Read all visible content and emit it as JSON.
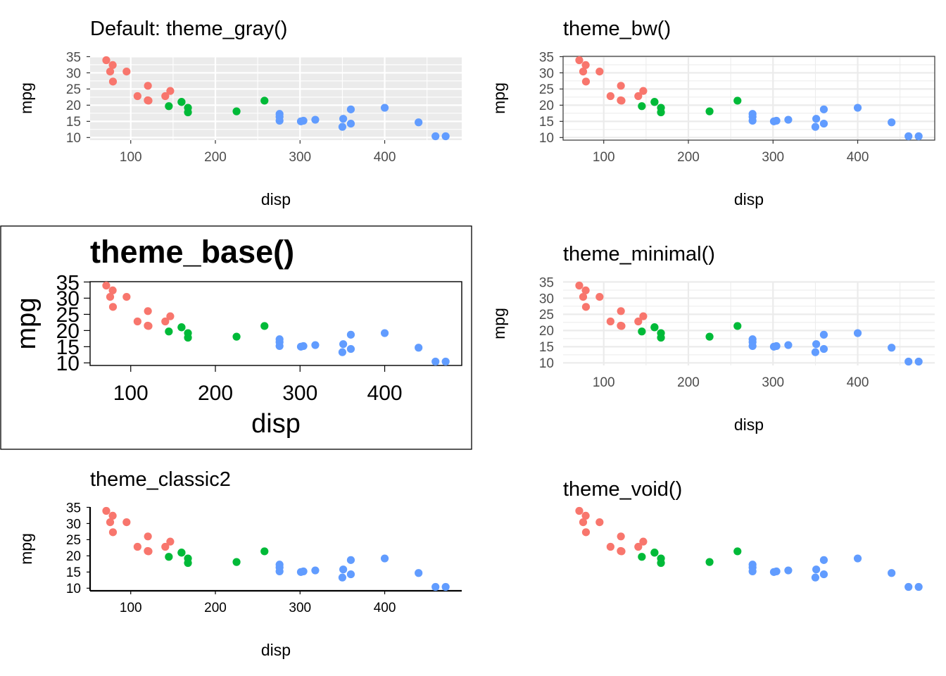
{
  "figure": {
    "colors": {
      "group_a": "#F8766D",
      "group_b": "#00BA38",
      "group_c": "#619CFF",
      "gray_panel": "#EBEBEB",
      "grid_light": "#EBEBEB",
      "axis_text": "#4D4D4D"
    },
    "points": [
      {
        "disp": 71.1,
        "mpg": 33.9,
        "group": "a"
      },
      {
        "disp": 75.7,
        "mpg": 30.4,
        "group": "a"
      },
      {
        "disp": 78.7,
        "mpg": 32.4,
        "group": "a"
      },
      {
        "disp": 79.0,
        "mpg": 27.3,
        "group": "a"
      },
      {
        "disp": 95.1,
        "mpg": 30.4,
        "group": "a"
      },
      {
        "disp": 108.0,
        "mpg": 22.8,
        "group": "a"
      },
      {
        "disp": 120.1,
        "mpg": 21.5,
        "group": "a"
      },
      {
        "disp": 120.3,
        "mpg": 26.0,
        "group": "a"
      },
      {
        "disp": 121.0,
        "mpg": 21.4,
        "group": "a"
      },
      {
        "disp": 140.8,
        "mpg": 22.8,
        "group": "a"
      },
      {
        "disp": 146.7,
        "mpg": 24.4,
        "group": "a"
      },
      {
        "disp": 145.0,
        "mpg": 19.7,
        "group": "b"
      },
      {
        "disp": 160.0,
        "mpg": 21.0,
        "group": "b"
      },
      {
        "disp": 160.0,
        "mpg": 21.0,
        "group": "b"
      },
      {
        "disp": 167.6,
        "mpg": 19.2,
        "group": "b"
      },
      {
        "disp": 167.6,
        "mpg": 17.8,
        "group": "b"
      },
      {
        "disp": 225.0,
        "mpg": 18.1,
        "group": "b"
      },
      {
        "disp": 258.0,
        "mpg": 21.4,
        "group": "b"
      },
      {
        "disp": 275.8,
        "mpg": 16.4,
        "group": "c"
      },
      {
        "disp": 275.8,
        "mpg": 17.3,
        "group": "c"
      },
      {
        "disp": 275.8,
        "mpg": 15.2,
        "group": "c"
      },
      {
        "disp": 301.0,
        "mpg": 15.0,
        "group": "c"
      },
      {
        "disp": 304.0,
        "mpg": 15.2,
        "group": "c"
      },
      {
        "disp": 318.0,
        "mpg": 15.5,
        "group": "c"
      },
      {
        "disp": 350.0,
        "mpg": 13.3,
        "group": "c"
      },
      {
        "disp": 351.0,
        "mpg": 15.8,
        "group": "c"
      },
      {
        "disp": 360.0,
        "mpg": 18.7,
        "group": "c"
      },
      {
        "disp": 360.0,
        "mpg": 14.3,
        "group": "c"
      },
      {
        "disp": 400.0,
        "mpg": 19.2,
        "group": "c"
      },
      {
        "disp": 440.0,
        "mpg": 14.7,
        "group": "c"
      },
      {
        "disp": 460.0,
        "mpg": 10.4,
        "group": "c"
      },
      {
        "disp": 472.0,
        "mpg": 10.4,
        "group": "c"
      }
    ]
  },
  "chart_data": [
    {
      "type": "scatter",
      "title": "Default: theme_gray()",
      "xlabel": "disp",
      "ylabel": "mpg",
      "xticks": [
        100,
        200,
        300,
        400
      ],
      "yticks": [
        10,
        15,
        20,
        25,
        30,
        35
      ],
      "xlim": [
        52,
        491
      ],
      "ylim": [
        9.2,
        35.1
      ],
      "theme": "gray",
      "grid": true,
      "legend": "none"
    },
    {
      "type": "scatter",
      "title": "theme_bw()",
      "xlabel": "disp",
      "ylabel": "mpg",
      "xticks": [
        100,
        200,
        300,
        400
      ],
      "yticks": [
        10,
        15,
        20,
        25,
        30,
        35
      ],
      "xlim": [
        52,
        491
      ],
      "ylim": [
        9.2,
        35.1
      ],
      "theme": "bw",
      "grid": true,
      "legend": "none"
    },
    {
      "type": "scatter",
      "title": "theme_base()",
      "xlabel": "disp",
      "ylabel": "mpg",
      "xticks": [
        100,
        200,
        300,
        400
      ],
      "yticks": [
        10,
        15,
        20,
        25,
        30,
        35
      ],
      "xlim": [
        52,
        491
      ],
      "ylim": [
        9.2,
        35.1
      ],
      "theme": "base",
      "grid": false,
      "legend": "none"
    },
    {
      "type": "scatter",
      "title": "theme_minimal()",
      "xlabel": "disp",
      "ylabel": "mpg",
      "xticks": [
        100,
        200,
        300,
        400
      ],
      "yticks": [
        10,
        15,
        20,
        25,
        30,
        35
      ],
      "xlim": [
        52,
        491
      ],
      "ylim": [
        9.2,
        35.1
      ],
      "theme": "minimal",
      "grid": true,
      "legend": "none"
    },
    {
      "type": "scatter",
      "title": "theme_classic2",
      "xlabel": "disp",
      "ylabel": "mpg",
      "xticks": [
        100,
        200,
        300,
        400
      ],
      "yticks": [
        10,
        15,
        20,
        25,
        30,
        35
      ],
      "xlim": [
        52,
        491
      ],
      "ylim": [
        9.2,
        35.1
      ],
      "theme": "classic2",
      "grid": false,
      "legend": "none"
    },
    {
      "type": "scatter",
      "title": "theme_void()",
      "xlabel": "",
      "ylabel": "",
      "xticks": [],
      "yticks": [],
      "xlim": [
        52,
        491
      ],
      "ylim": [
        9.2,
        35.1
      ],
      "theme": "void",
      "grid": false,
      "legend": "none"
    }
  ]
}
